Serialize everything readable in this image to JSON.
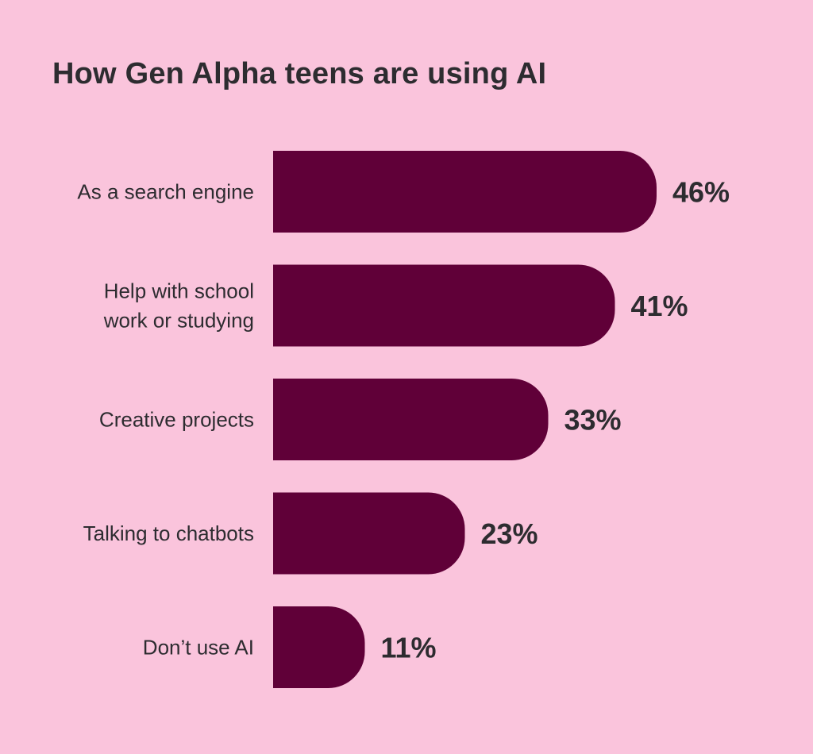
{
  "colors": {
    "background": "#fac4dc",
    "bar": "#600038",
    "text": "#2d2c30"
  },
  "chart_data": {
    "type": "bar",
    "orientation": "horizontal",
    "title": "How Gen Alpha teens are using AI",
    "categories": [
      [
        "As a search engine"
      ],
      [
        "Help with school",
        "work or studying"
      ],
      [
        "Creative projects"
      ],
      [
        "Talking to chatbots"
      ],
      [
        "Don’t use AI"
      ]
    ],
    "values": [
      46,
      41,
      33,
      23,
      11
    ],
    "value_labels": [
      "46%",
      "41%",
      "33%",
      "23%",
      "11%"
    ],
    "unit": "%",
    "xlim": [
      0,
      46
    ],
    "grid": false,
    "legend": "none"
  }
}
